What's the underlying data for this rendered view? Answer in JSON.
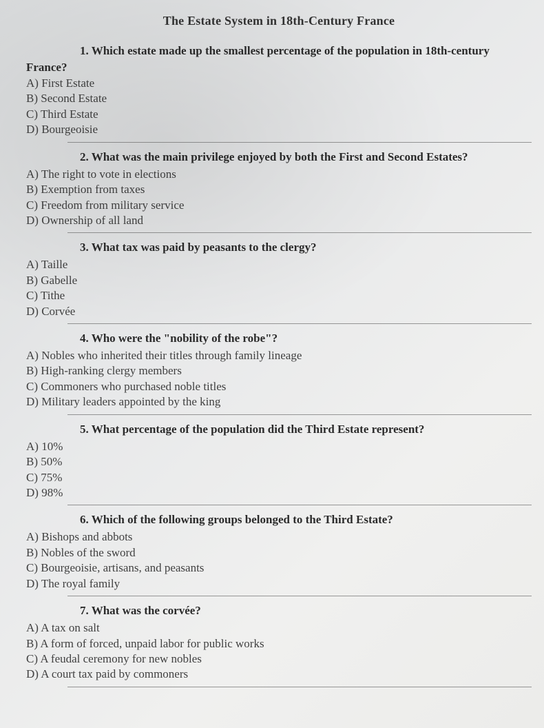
{
  "title": "The Estate System in 18th-Century France",
  "questions": [
    {
      "num": "1.",
      "text": "Which estate made up the smallest percentage of the population in 18th-century",
      "cont": "France?",
      "options": [
        {
          "letter": "A)",
          "text": "First Estate"
        },
        {
          "letter": "B)",
          "text": "Second Estate"
        },
        {
          "letter": "C)",
          "text": "Third Estate"
        },
        {
          "letter": "D)",
          "text": "Bourgeoisie"
        }
      ]
    },
    {
      "num": "2.",
      "text": "What was the main privilege enjoyed by both the First and Second Estates?",
      "cont": "",
      "options": [
        {
          "letter": "A)",
          "text": "The right to vote in elections"
        },
        {
          "letter": "B)",
          "text": "Exemption from taxes"
        },
        {
          "letter": "C)",
          "text": "Freedom from military service"
        },
        {
          "letter": "D)",
          "text": "Ownership of all land"
        }
      ]
    },
    {
      "num": "3.",
      "text": "What tax was paid by peasants to the clergy?",
      "cont": "",
      "options": [
        {
          "letter": "A)",
          "text": "Taille"
        },
        {
          "letter": "B)",
          "text": "Gabelle"
        },
        {
          "letter": "C)",
          "text": "Tithe"
        },
        {
          "letter": "D)",
          "text": "Corvée"
        }
      ]
    },
    {
      "num": "4.",
      "text": "Who were the \"nobility of the robe\"?",
      "cont": "",
      "options": [
        {
          "letter": "A)",
          "text": "Nobles who inherited their titles through family lineage"
        },
        {
          "letter": "B)",
          "text": "High-ranking clergy members"
        },
        {
          "letter": "C)",
          "text": "Commoners who purchased noble titles"
        },
        {
          "letter": "D)",
          "text": "Military leaders appointed by the king"
        }
      ]
    },
    {
      "num": "5.",
      "text": "What percentage of the population did the Third Estate represent?",
      "cont": "",
      "options": [
        {
          "letter": "A)",
          "text": "10%"
        },
        {
          "letter": "B)",
          "text": "50%"
        },
        {
          "letter": "C)",
          "text": "75%"
        },
        {
          "letter": "D)",
          "text": "98%"
        }
      ]
    },
    {
      "num": "6.",
      "text": "Which of the following groups belonged to the Third Estate?",
      "cont": "",
      "options": [
        {
          "letter": "A)",
          "text": "Bishops and abbots"
        },
        {
          "letter": "B)",
          "text": "Nobles of the sword"
        },
        {
          "letter": "C)",
          "text": "Bourgeoisie, artisans, and peasants"
        },
        {
          "letter": "D)",
          "text": "The royal family"
        }
      ]
    },
    {
      "num": "7.",
      "text": "What was the corvée?",
      "cont": "",
      "options": [
        {
          "letter": "A)",
          "text": "A tax on salt"
        },
        {
          "letter": "B)",
          "text": "A form of forced, unpaid labor for public works"
        },
        {
          "letter": "C)",
          "text": "A feudal ceremony for new nobles"
        },
        {
          "letter": "D)",
          "text": "A court tax paid by commoners"
        }
      ]
    }
  ]
}
